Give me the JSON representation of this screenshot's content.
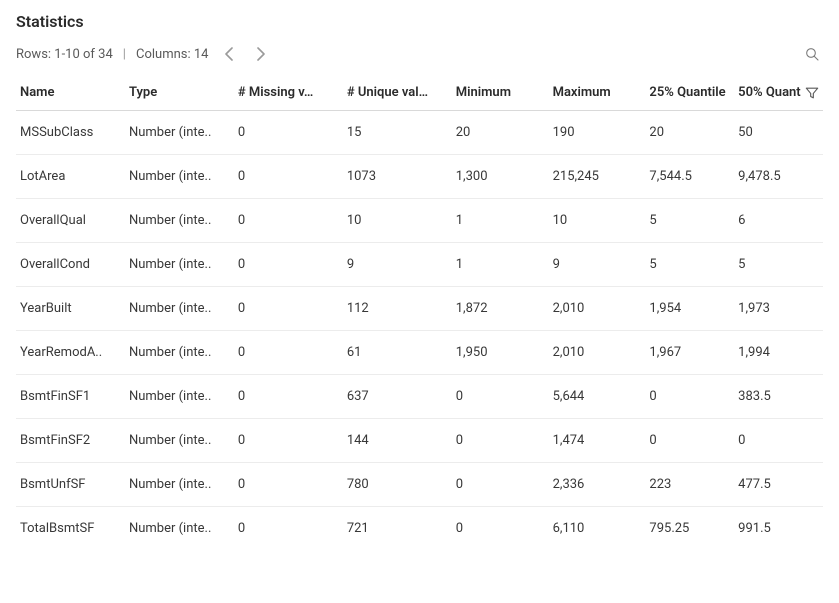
{
  "title": "Statistics",
  "toolbar": {
    "rows_label": "Rows: 1-10 of 34",
    "columns_label": "Columns: 14"
  },
  "columns": [
    {
      "key": "name",
      "label": "Name"
    },
    {
      "key": "type",
      "label": "Type"
    },
    {
      "key": "missing",
      "label": "# Missing v…"
    },
    {
      "key": "unique",
      "label": "# Unique val…"
    },
    {
      "key": "min",
      "label": "Minimum"
    },
    {
      "key": "max",
      "label": "Maximum"
    },
    {
      "key": "q25",
      "label": "25% Quantile"
    },
    {
      "key": "q50",
      "label": "50% Quant"
    }
  ],
  "rows": [
    {
      "name": "MSSubClass",
      "type": "Number (inte..",
      "missing": "0",
      "unique": "15",
      "min": "20",
      "max": "190",
      "q25": "20",
      "q50": "50"
    },
    {
      "name": "LotArea",
      "type": "Number (inte..",
      "missing": "0",
      "unique": "1073",
      "min": "1,300",
      "max": "215,245",
      "q25": "7,544.5",
      "q50": "9,478.5"
    },
    {
      "name": "OverallQual",
      "type": "Number (inte..",
      "missing": "0",
      "unique": "10",
      "min": "1",
      "max": "10",
      "q25": "5",
      "q50": "6"
    },
    {
      "name": "OverallCond",
      "type": "Number (inte..",
      "missing": "0",
      "unique": "9",
      "min": "1",
      "max": "9",
      "q25": "5",
      "q50": "5"
    },
    {
      "name": "YearBuilt",
      "type": "Number (inte..",
      "missing": "0",
      "unique": "112",
      "min": "1,872",
      "max": "2,010",
      "q25": "1,954",
      "q50": "1,973"
    },
    {
      "name": "YearRemodA..",
      "type": "Number (inte..",
      "missing": "0",
      "unique": "61",
      "min": "1,950",
      "max": "2,010",
      "q25": "1,967",
      "q50": "1,994"
    },
    {
      "name": "BsmtFinSF1",
      "type": "Number (inte..",
      "missing": "0",
      "unique": "637",
      "min": "0",
      "max": "5,644",
      "q25": "0",
      "q50": "383.5"
    },
    {
      "name": "BsmtFinSF2",
      "type": "Number (inte..",
      "missing": "0",
      "unique": "144",
      "min": "0",
      "max": "1,474",
      "q25": "0",
      "q50": "0"
    },
    {
      "name": "BsmtUnfSF",
      "type": "Number (inte..",
      "missing": "0",
      "unique": "780",
      "min": "0",
      "max": "2,336",
      "q25": "223",
      "q50": "477.5"
    },
    {
      "name": "TotalBsmtSF",
      "type": "Number (inte..",
      "missing": "0",
      "unique": "721",
      "min": "0",
      "max": "6,110",
      "q25": "795.25",
      "q50": "991.5"
    }
  ]
}
